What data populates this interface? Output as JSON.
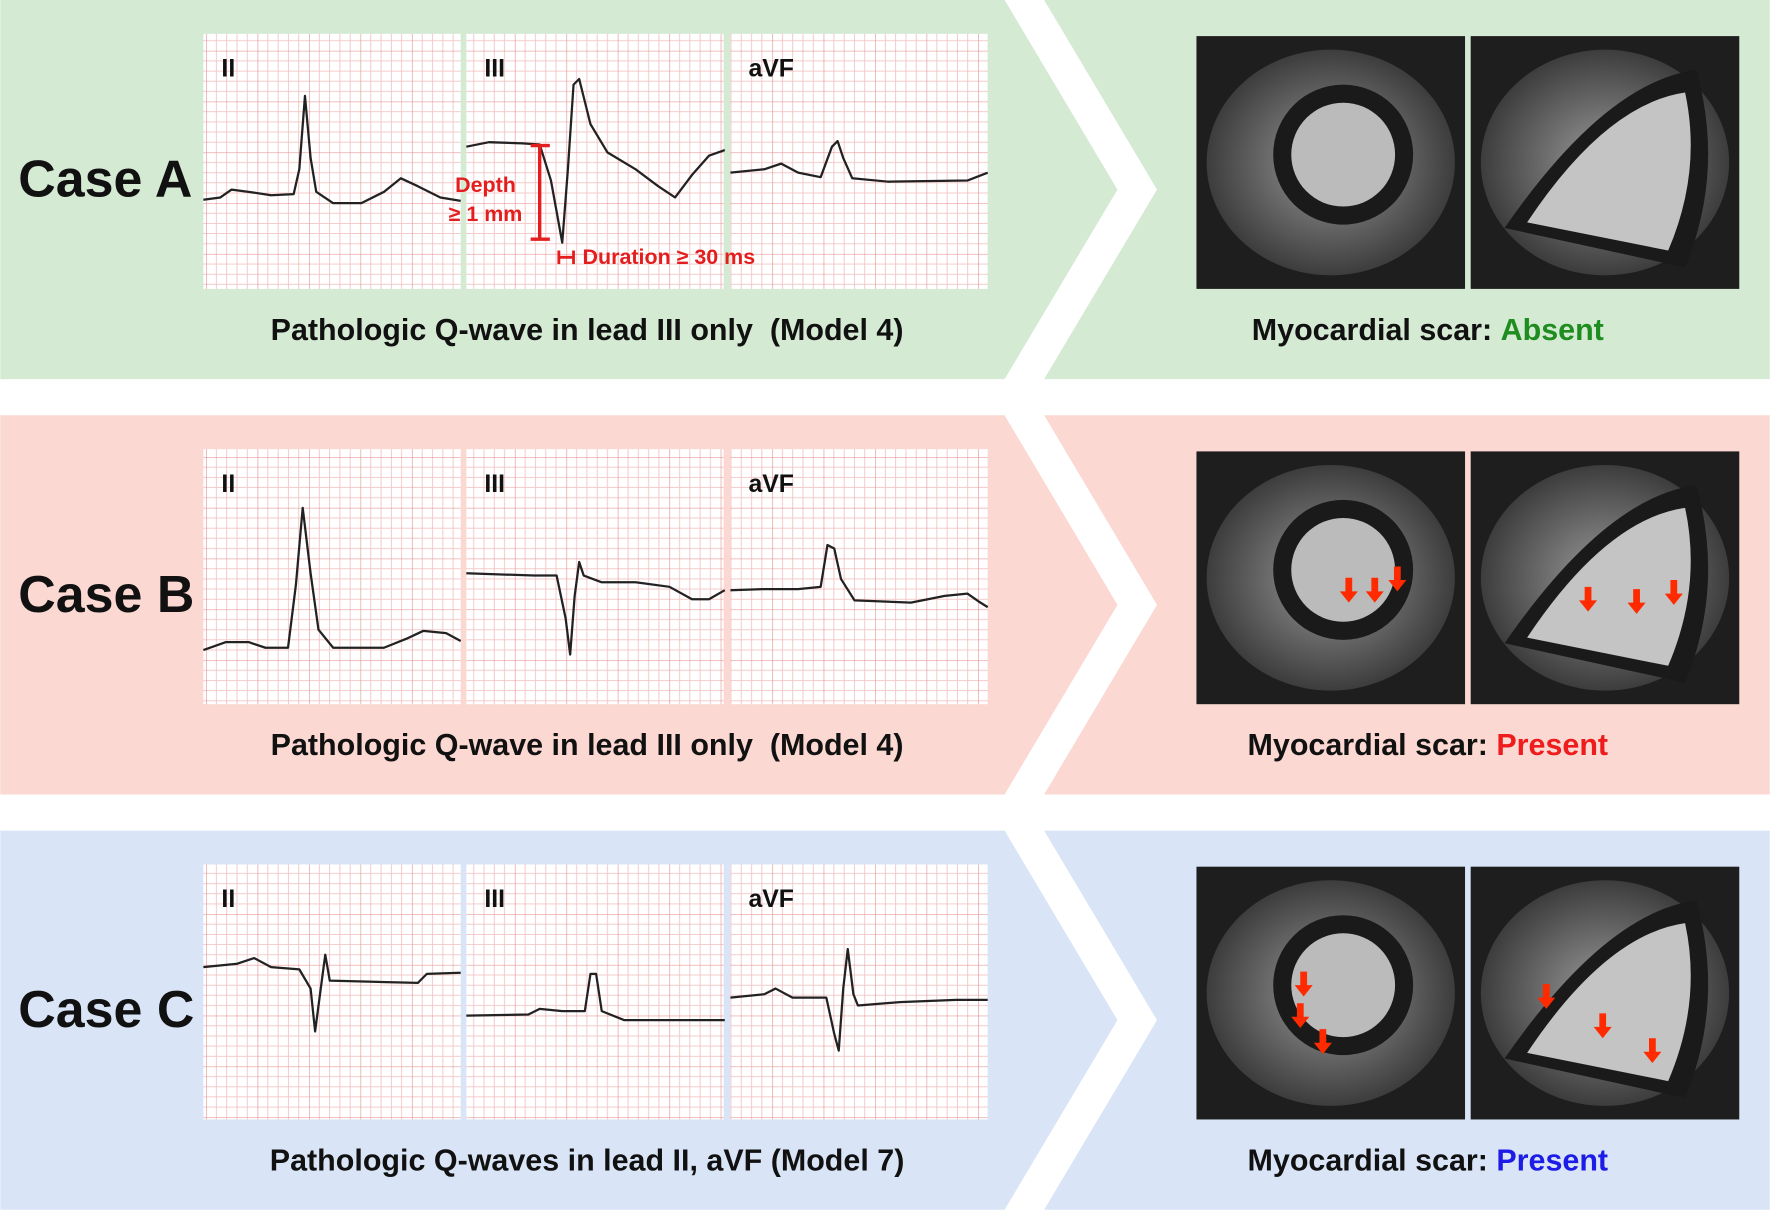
{
  "cases": [
    {
      "label": "Case A",
      "leads": [
        "II",
        "III",
        "aVF"
      ],
      "caption": "Pathologic Q-wave in lead III only  (Model 4)",
      "scar_label": "Myocardial scar:",
      "scar_value": "Absent",
      "scar_color": "#1e8c1e",
      "background": "#d4ead3",
      "annotations": [
        "Depth",
        "≥ 1 mm",
        "Duration ≥ 30 ms"
      ]
    },
    {
      "label": "Case B",
      "leads": [
        "II",
        "III",
        "aVF"
      ],
      "caption": "Pathologic Q-wave in lead III only  (Model 4)",
      "scar_label": "Myocardial scar:",
      "scar_value": "Present",
      "scar_color": "#ee1c1c",
      "background": "#fbd8d2"
    },
    {
      "label": "Case C",
      "leads": [
        "II",
        "III",
        "aVF"
      ],
      "caption": "Pathologic Q-waves in lead II, aVF (Model 7)",
      "scar_label": "Myocardial scar:",
      "scar_value": "Present",
      "scar_color": "#1c1ce6",
      "background": "#d9e5f7"
    }
  ]
}
